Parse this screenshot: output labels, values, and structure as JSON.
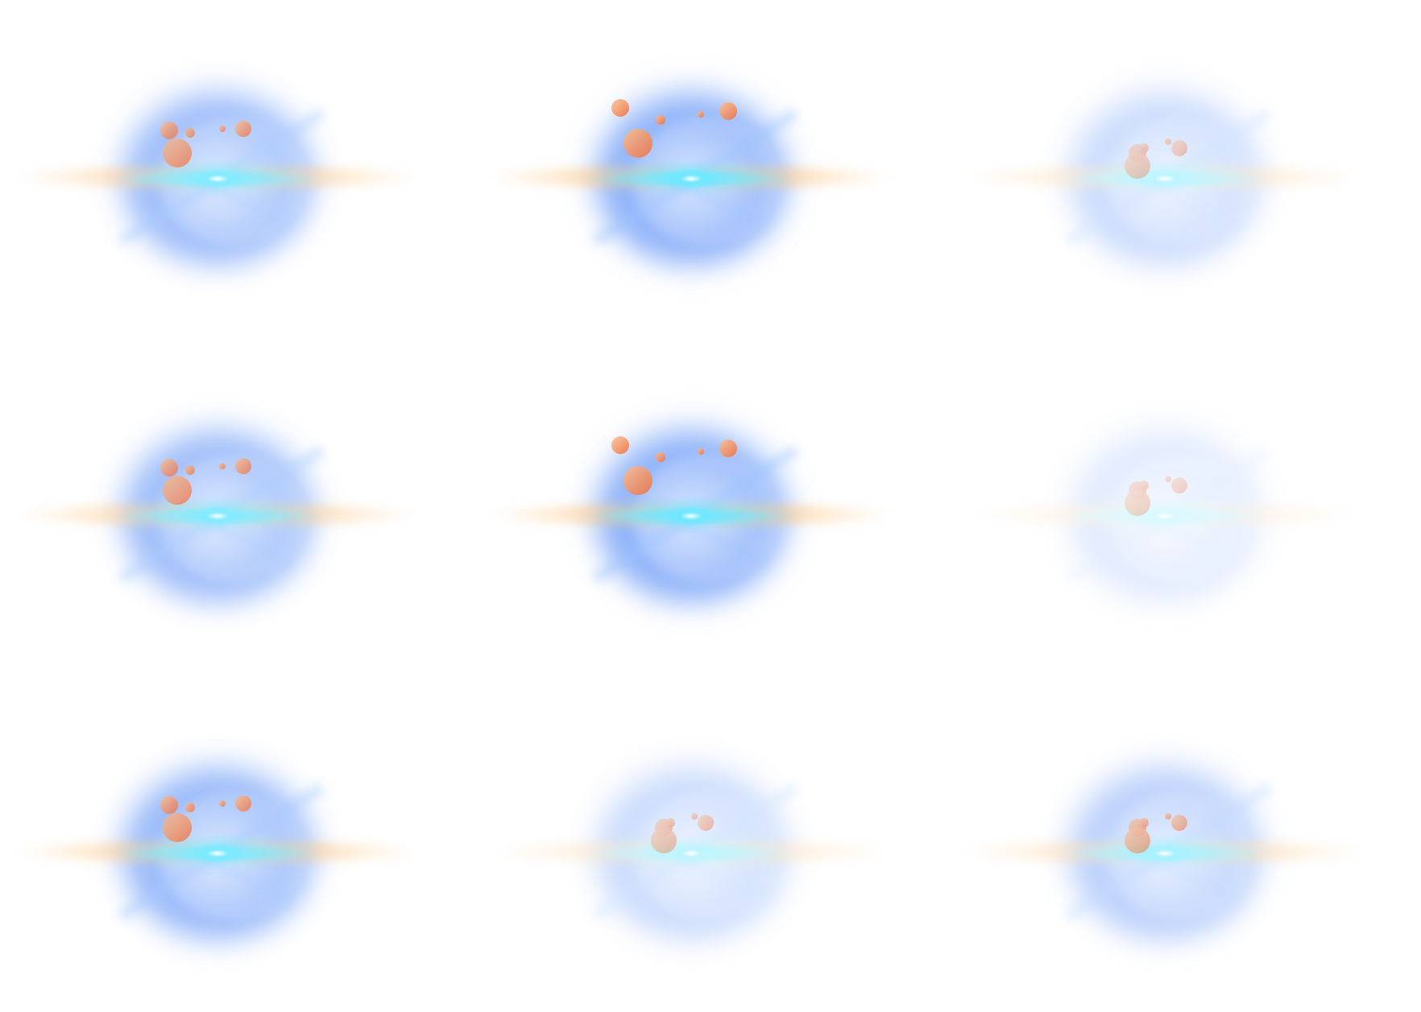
{
  "sheet": {
    "title": "",
    "columns": 3,
    "rows": 3,
    "background": "#ffffff"
  },
  "palette": {
    "glow_core": "#ffffff",
    "glow_cyan": "#6fe8ff",
    "glow_blue": "#4d86f5",
    "glow_light_blue": "#cfe0ff",
    "flare_orange": "#ffc98a",
    "orb_light": "#ffc08a",
    "orb_dark": "#f06a3a"
  },
  "frames": [
    {
      "id": "frame-1",
      "intensity": 0.85,
      "orb_opacity": 0.85,
      "orb_set": "a"
    },
    {
      "id": "frame-2",
      "intensity": 1.0,
      "orb_opacity": 1.0,
      "orb_set": "b"
    },
    {
      "id": "frame-3",
      "intensity": 0.45,
      "orb_opacity": 0.45,
      "orb_set": "c"
    },
    {
      "id": "frame-4",
      "intensity": 0.85,
      "orb_opacity": 0.85,
      "orb_set": "a"
    },
    {
      "id": "frame-5",
      "intensity": 1.0,
      "orb_opacity": 1.0,
      "orb_set": "b"
    },
    {
      "id": "frame-6",
      "intensity": 0.25,
      "orb_opacity": 0.35,
      "orb_set": "c"
    },
    {
      "id": "frame-7",
      "intensity": 0.9,
      "orb_opacity": 0.9,
      "orb_set": "a"
    },
    {
      "id": "frame-8",
      "intensity": 0.45,
      "orb_opacity": 0.5,
      "orb_set": "c"
    },
    {
      "id": "frame-9",
      "intensity": 0.6,
      "orb_opacity": 0.65,
      "orb_set": "c"
    }
  ]
}
